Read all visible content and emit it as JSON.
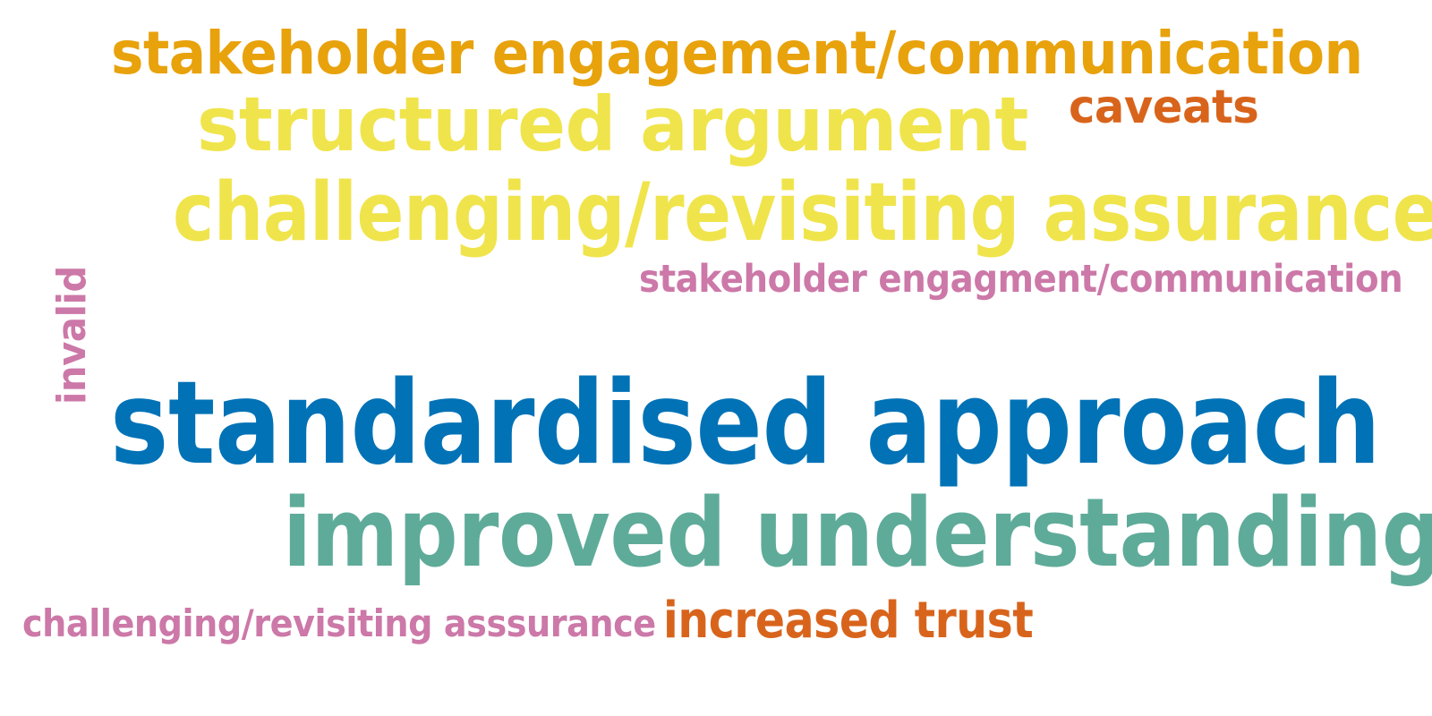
{
  "words": [
    {
      "text": "stakeholder engagement/communication",
      "color": "#e8a20c"
    },
    {
      "text": "caveats",
      "color": "#d8641c"
    },
    {
      "text": "structured argument",
      "color": "#f0e44c"
    },
    {
      "text": "challenging/revisiting assurance",
      "color": "#f0e44c"
    },
    {
      "text": "stakeholder engagment/communication",
      "color": "#cc78a8"
    },
    {
      "text": "invalid",
      "color": "#cc78a8"
    },
    {
      "text": "standardised approach",
      "color": "#0172b6"
    },
    {
      "text": "improved understanding",
      "color": "#5fab9a"
    },
    {
      "text": "challenging/revisiting asssurance",
      "color": "#cc78a8"
    },
    {
      "text": "increased trust",
      "color": "#d8641c"
    }
  ]
}
